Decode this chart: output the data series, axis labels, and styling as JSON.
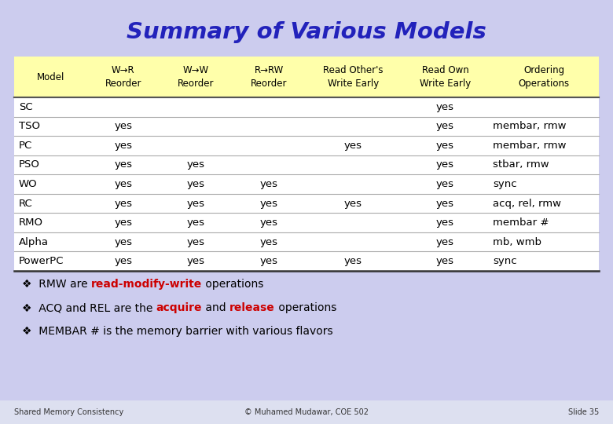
{
  "title": "Summary of Various Models",
  "title_color": "#2222bb",
  "title_bg": "#ccccee",
  "header_bg": "#ffffaa",
  "outer_bg": "#ccccee",
  "col_headers_line1": [
    "Model",
    "W→R",
    "W→W",
    "R→RW",
    "Read Other's",
    "Read Own",
    "Ordering"
  ],
  "col_headers_line2": [
    "",
    "Reorder",
    "Reorder",
    "Reorder",
    "Write Early",
    "Write Early",
    "Operations"
  ],
  "rows": [
    [
      "SC",
      "",
      "",
      "",
      "",
      "yes",
      ""
    ],
    [
      "TSO",
      "yes",
      "",
      "",
      "",
      "yes",
      "membar, rmw"
    ],
    [
      "PC",
      "yes",
      "",
      "",
      "yes",
      "yes",
      "membar, rmw"
    ],
    [
      "PSO",
      "yes",
      "yes",
      "",
      "",
      "yes",
      "stbar, rmw"
    ],
    [
      "WO",
      "yes",
      "yes",
      "yes",
      "",
      "yes",
      "sync"
    ],
    [
      "RC",
      "yes",
      "yes",
      "yes",
      "yes",
      "yes",
      "acq, rel, rmw"
    ],
    [
      "RMO",
      "yes",
      "yes",
      "yes",
      "",
      "yes",
      "membar #"
    ],
    [
      "Alpha",
      "yes",
      "yes",
      "yes",
      "",
      "yes",
      "mb, wmb"
    ],
    [
      "PowerPC",
      "yes",
      "yes",
      "yes",
      "yes",
      "yes",
      "sync"
    ]
  ],
  "footer_notes": [
    [
      {
        "text": "❖  RMW are ",
        "color": "#000000",
        "bold": false
      },
      {
        "text": "read-modify-write",
        "color": "#cc0000",
        "bold": true
      },
      {
        "text": " operations",
        "color": "#000000",
        "bold": false
      }
    ],
    [
      {
        "text": "❖  ACQ and REL are the ",
        "color": "#000000",
        "bold": false
      },
      {
        "text": "acquire",
        "color": "#cc0000",
        "bold": true
      },
      {
        "text": " and ",
        "color": "#000000",
        "bold": false
      },
      {
        "text": "release",
        "color": "#cc0000",
        "bold": true
      },
      {
        "text": " operations",
        "color": "#000000",
        "bold": false
      }
    ],
    [
      {
        "text": "❖  MEMBAR # is the memory barrier with various flavors",
        "color": "#000000",
        "bold": false
      }
    ]
  ],
  "bottom_left": "Shared Memory Consistency",
  "bottom_center": "© Muhamed Mudawar, COE 502",
  "bottom_right": "Slide 35"
}
